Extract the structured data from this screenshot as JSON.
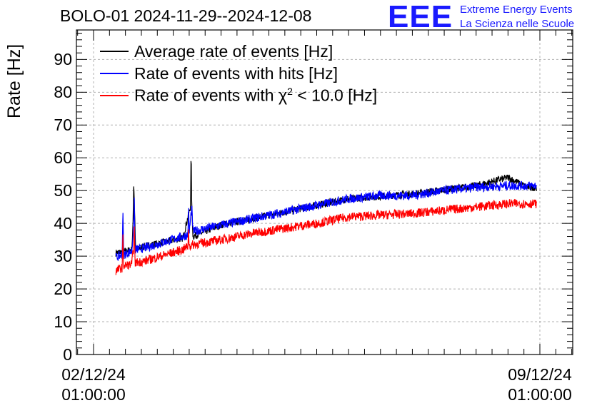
{
  "chart_data": {
    "type": "line",
    "title": "BOLO-01 2024-11-29--2024-12-08",
    "ylabel": "Rate [Hz]",
    "xlabel": "",
    "ylim": [
      0,
      99
    ],
    "yticks": [
      0,
      10,
      20,
      30,
      40,
      50,
      60,
      70,
      80,
      90
    ],
    "xticks": [
      {
        "line1": "02/12/24",
        "line2": "01:00:00"
      },
      {
        "line1": "09/12/24",
        "line2": "01:00:00"
      }
    ],
    "grid": true,
    "legend_position": "top-left",
    "x_range_days": [
      0,
      7.5
    ],
    "series": [
      {
        "name": "Average rate of events [Hz]",
        "color": "#000000",
        "x": [
          0.35,
          0.5,
          0.6,
          0.62,
          0.63,
          0.65,
          0.66,
          0.68,
          0.8,
          1.4,
          1.52,
          1.53,
          1.54,
          1.56,
          2.0,
          3.0,
          4.0,
          5.0,
          6.0,
          6.5,
          6.8,
          6.95
        ],
        "values": [
          31,
          31.5,
          32,
          40,
          53,
          40,
          32,
          32,
          33,
          35.5,
          45,
          62,
          45,
          36,
          39.5,
          43.5,
          47.5,
          49,
          51.5,
          54,
          51,
          51
        ]
      },
      {
        "name": "Rate of events with hits [Hz]",
        "color": "#0000ff",
        "x": [
          0.35,
          0.45,
          0.46,
          0.47,
          0.48,
          0.6,
          0.63,
          0.64,
          0.65,
          0.8,
          1.4,
          1.48,
          1.49,
          1.5,
          1.54,
          1.56,
          2.0,
          2.5,
          3.0,
          3.5,
          4.0,
          4.5,
          5.0,
          5.5,
          6.0,
          6.5,
          6.95
        ],
        "values": [
          29.5,
          30.5,
          46.5,
          31,
          30.5,
          31.5,
          40,
          48,
          32,
          32.5,
          36,
          36.5,
          45.5,
          37,
          45,
          37.5,
          39.5,
          41.5,
          43.5,
          45.5,
          47.5,
          48.5,
          48.5,
          50,
          51,
          51.5,
          51.5
        ]
      },
      {
        "name": "Rate of events with χ² < 10.0 [Hz]",
        "color": "#ff0000",
        "x": [
          0.35,
          0.45,
          0.46,
          0.47,
          0.6,
          0.63,
          0.64,
          0.65,
          0.8,
          1.4,
          1.48,
          1.49,
          1.5,
          1.56,
          2.0,
          2.5,
          3.0,
          3.5,
          4.0,
          4.5,
          5.0,
          5.5,
          6.0,
          6.5,
          6.95
        ],
        "values": [
          25.5,
          26.5,
          37,
          27,
          27.5,
          33,
          38.5,
          28,
          28.5,
          32,
          33,
          39,
          33,
          33.5,
          35,
          37,
          38.5,
          40,
          42,
          42.5,
          43,
          44,
          45,
          46,
          46
        ]
      }
    ]
  },
  "legend": {
    "avg": "Average rate of events [Hz]",
    "hits": "Rate of events with hits [Hz]",
    "chi_prefix": "Rate of events with χ",
    "chi_sup": "2",
    "chi_suffix": " < 10.0 [Hz]"
  },
  "logo": {
    "mark": "EEE",
    "line1": "Extreme Energy Events",
    "line2": "La Scienza nelle Scuole"
  }
}
